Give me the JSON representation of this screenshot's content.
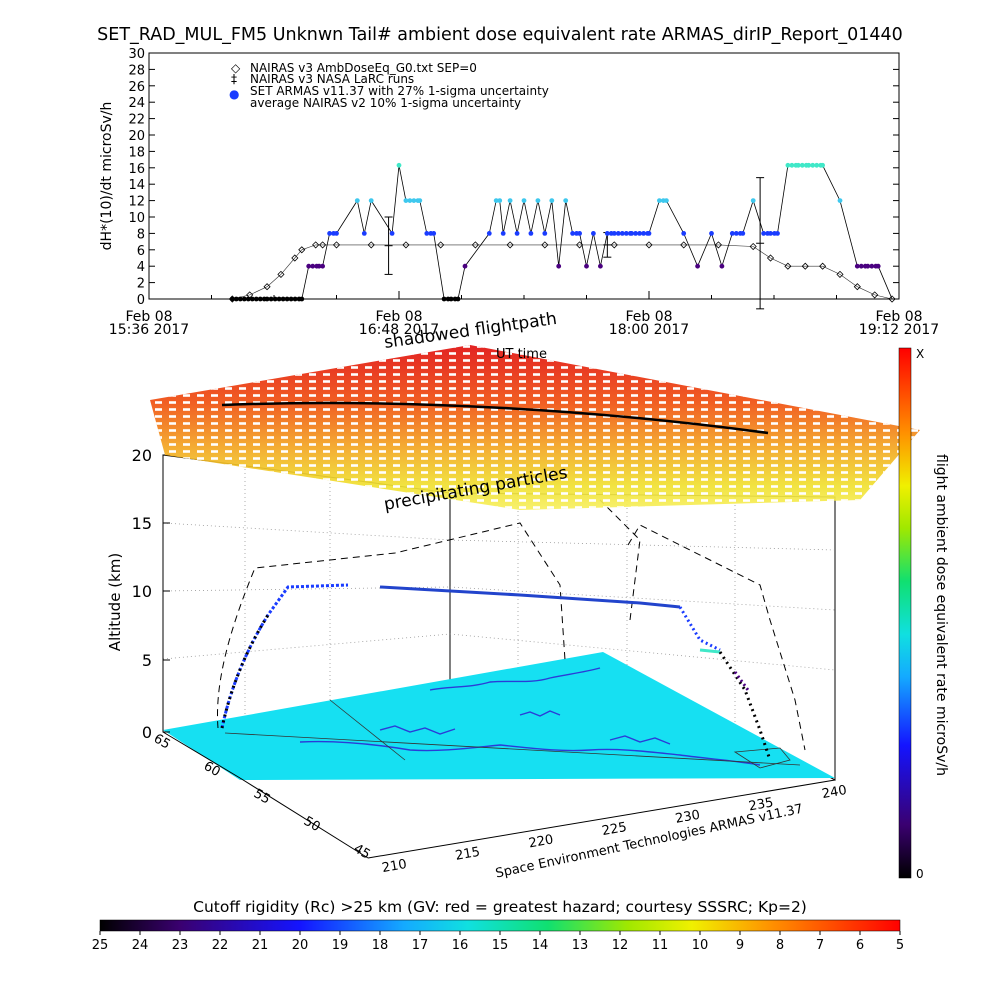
{
  "title": "SET_RAD_MUL_FM5 Unknwn Tail#  ambient dose equivalent rate ARMAS_dirIP_Report_01440",
  "chart_data": [
    {
      "type": "line",
      "ylabel": "dH*(10)/dt microSv/h",
      "xlabel": "UT time",
      "ylim": [
        0,
        30
      ],
      "y_ticks": [
        "0",
        "2",
        "4",
        "6",
        "8",
        "10",
        "12",
        "14",
        "16",
        "18",
        "20",
        "22",
        "24",
        "26",
        "28",
        "30"
      ],
      "x_ticks": [
        {
          "date": "Feb 08",
          "time": "15:36 2017"
        },
        {
          "date": "Feb 08",
          "time": "16:48 2017"
        },
        {
          "date": "Feb 08",
          "time": "18:00 2017"
        },
        {
          "date": "Feb 08",
          "time": "19:12 2017"
        }
      ],
      "legend": [
        {
          "symbol": "◇",
          "label": "NAIRAS v3 AmbDoseEq_G0.txt SEP=0"
        },
        {
          "symbol": "‡",
          "label": "NAIRAS v3 NASA LaRC runs"
        },
        {
          "symbol": "●",
          "label": "SET ARMAS v11.37 with 27% 1-sigma uncertainty"
        },
        {
          "symbol": "",
          "label": "average NAIRAS v2 10% 1-sigma uncertainty"
        }
      ],
      "series": [
        {
          "name": "NAIRAS v3 AmbDoseEq_G0.txt SEP=0",
          "x": [
            "16:00",
            "16:05",
            "16:10",
            "16:14",
            "16:18",
            "16:20",
            "16:24",
            "16:26",
            "16:30",
            "16:40",
            "16:50",
            "17:00",
            "17:10",
            "17:20",
            "17:30",
            "17:40",
            "17:50",
            "18:00",
            "18:10",
            "18:20",
            "18:30",
            "18:35",
            "18:40",
            "18:45",
            "18:50",
            "18:55",
            "19:00",
            "19:05",
            "19:10"
          ],
          "values": [
            0,
            0.5,
            1.5,
            3,
            5,
            6,
            6.6,
            6.6,
            6.6,
            6.6,
            6.6,
            6.6,
            6.6,
            6.6,
            6.6,
            6.6,
            6.6,
            6.6,
            6.6,
            6.6,
            6.4,
            5,
            4,
            4,
            4,
            3,
            1.5,
            0.5,
            0
          ]
        },
        {
          "name": "NAIRAS v3 NASA LaRC runs",
          "x": [
            "16:45",
            "17:48",
            "18:32"
          ],
          "values": [
            6.5,
            6.6,
            6.8
          ],
          "error": [
            3.5,
            1.5,
            8
          ]
        },
        {
          "name": "SET ARMAS v11.37 with 27% 1-sigma uncertainty",
          "x": [
            "16:00",
            "16:10",
            "16:20",
            "16:22",
            "16:25",
            "16:26",
            "16:28",
            "16:30",
            "16:36",
            "16:38",
            "16:40",
            "16:46",
            "16:48",
            "16:50",
            "16:54",
            "16:56",
            "16:58",
            "17:01",
            "17:03",
            "17:05",
            "17:07",
            "17:14",
            "17:16",
            "17:17",
            "17:18",
            "17:20",
            "17:22",
            "17:24",
            "17:26",
            "17:28",
            "17:30",
            "17:32",
            "17:34",
            "17:36",
            "17:38",
            "17:40",
            "17:42",
            "17:44",
            "17:46",
            "17:48",
            "17:50",
            "17:55",
            "18:00",
            "18:03",
            "18:05",
            "18:10",
            "18:14",
            "18:18",
            "18:21",
            "18:24",
            "18:27",
            "18:30",
            "18:33",
            "18:35",
            "18:37",
            "18:40",
            "18:43",
            "18:46",
            "18:50",
            "18:55",
            "19:00",
            "19:03",
            "19:06",
            "19:10"
          ],
          "values": [
            0,
            0,
            0,
            4,
            4,
            4,
            8,
            8,
            12,
            8,
            12,
            8,
            16.3,
            12,
            12,
            8,
            8,
            0,
            0,
            0,
            4,
            8,
            12,
            12,
            8,
            12,
            8,
            12,
            8,
            12,
            8,
            12,
            4,
            12,
            8,
            8,
            4,
            8,
            4,
            8,
            8,
            8,
            8,
            12,
            12,
            8,
            4,
            8,
            4,
            8,
            8,
            12,
            8,
            8,
            8,
            16.3,
            16.3,
            16.3,
            16.3,
            12,
            4,
            4,
            4,
            0
          ]
        }
      ]
    },
    {
      "type": "scatter",
      "title": "shadowed flightpath",
      "annotation": "precipitating particles",
      "zlabel": "Altitude (km)",
      "z_ticks": [
        "0",
        "5",
        "10",
        "15",
        "20"
      ],
      "lon_ticks": [
        "210",
        "215",
        "220",
        "225",
        "230",
        "235",
        "240"
      ],
      "lat_ticks": [
        "45",
        "50",
        "55",
        "60",
        "65"
      ],
      "colorbar": {
        "label": "flight ambient dose equivalent rate microSv/h",
        "min": "0",
        "max": "X"
      },
      "credit": "Space Environment Technologies ARMAS v11.37"
    },
    {
      "type": "heatmap",
      "title": "Cutoff rigidity (Rc) >25 km (GV: red = greatest hazard; courtesy SSSRC; Kp=2)",
      "ticks": [
        "25",
        "24",
        "23",
        "22",
        "21",
        "20",
        "19",
        "18",
        "17",
        "16",
        "15",
        "14",
        "13",
        "12",
        "11",
        "10",
        "9",
        "8",
        "7",
        "6",
        "5"
      ]
    }
  ],
  "colors": {
    "armas_low": "#4a0080",
    "armas_mid": "#1a3cff",
    "armas_high": "#3ec8ee",
    "armas_peak": "#40e8c8",
    "map_land": "#16e0f2",
    "coast": "#2a3cd8"
  }
}
